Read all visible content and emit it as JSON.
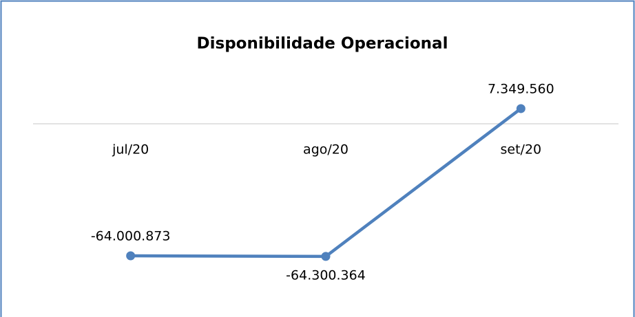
{
  "chart_data": {
    "type": "line",
    "title": "Disponibilidade Operacional",
    "categories": [
      "jul/20",
      "ago/20",
      "set/20"
    ],
    "series": [
      {
        "name": "Disponibilidade Operacional",
        "color": "#4f81bd",
        "values": [
          -64000873,
          -64300364,
          7349560
        ],
        "value_labels": [
          "-64.000.873",
          "-64.300.364",
          "7.349.560"
        ]
      }
    ],
    "ylim": [
      -90000000,
      20000000
    ]
  }
}
